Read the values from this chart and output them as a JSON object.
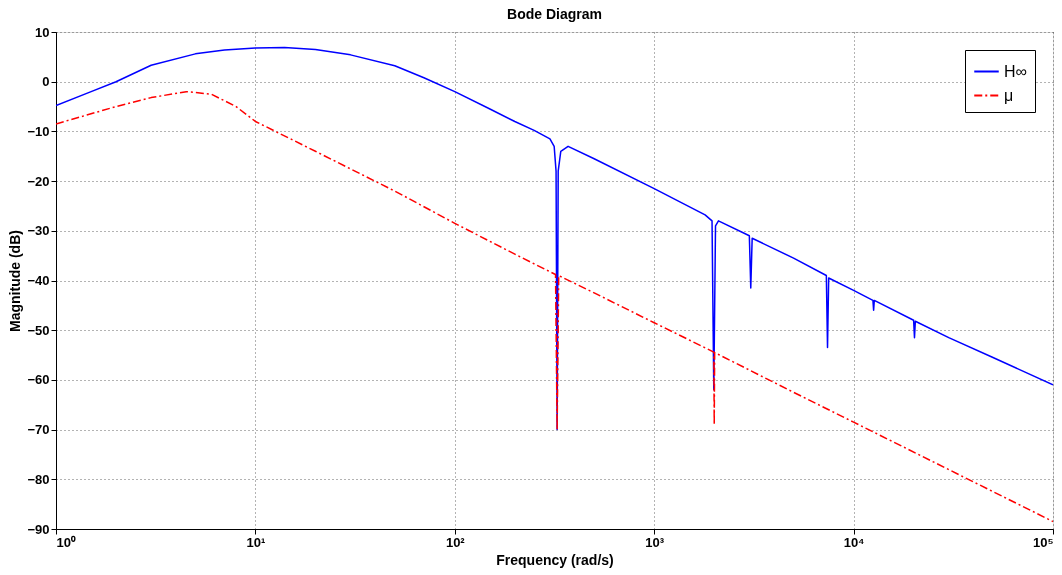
{
  "chart_data": {
    "type": "line",
    "title": "Bode Diagram",
    "xlabel": "Frequency  (rad/s)",
    "ylabel": "Magnitude (dB)",
    "log": "x",
    "grid": true,
    "legend": "top right",
    "xlim": [
      1,
      100000
    ],
    "xticks": [
      {
        "value": 1,
        "label": "10⁰"
      },
      {
        "value": 10,
        "label": "10¹"
      },
      {
        "value": 100,
        "label": "10²"
      },
      {
        "value": 1000,
        "label": "10³"
      },
      {
        "value": 10000,
        "label": "10⁴"
      },
      {
        "value": 100000,
        "label": "10⁵"
      }
    ],
    "ylim": [
      -90,
      10
    ],
    "yticks": [
      -90,
      -80,
      -70,
      -60,
      -50,
      -40,
      -30,
      -20,
      -10,
      0,
      10
    ],
    "series": [
      {
        "name": "H∞",
        "color": "#0000ff",
        "line_style": "solid",
        "x": [
          1,
          1.5,
          2,
          3,
          5,
          7,
          10,
          14,
          20,
          30,
          50,
          70,
          100,
          150,
          200,
          250,
          300,
          315,
          322,
          326,
          330,
          340,
          370,
          500,
          1000,
          1800,
          1950,
          1990,
          2030,
          2100,
          3000,
          3050,
          3100,
          5000,
          7300,
          7400,
          7500,
          10000,
          12500,
          12600,
          12700,
          20000,
          20200,
          20400,
          30000,
          50000,
          100000
        ],
        "values": [
          -4.8,
          -2,
          0,
          3.3,
          5.6,
          6.4,
          6.8,
          6.9,
          6.5,
          5.4,
          3.2,
          0.8,
          -2,
          -5.5,
          -8,
          -9.8,
          -11.5,
          -13,
          -18,
          -70,
          -18,
          -14,
          -13,
          -15.5,
          -21.5,
          -26.8,
          -28,
          -62,
          -29,
          -28,
          -31,
          -41.5,
          -31.5,
          -35.5,
          -39,
          -53.5,
          -39.5,
          -42,
          -44,
          -46,
          -44,
          -48,
          -51.5,
          -48.2,
          -51.5,
          -55.5,
          -61
        ]
      },
      {
        "name": "μ",
        "color": "#ff0000",
        "line_style": "dashdot",
        "x": [
          1,
          2,
          3,
          4.5,
          6,
          8,
          10,
          15,
          20,
          50,
          100,
          200,
          320,
          326,
          332,
          500,
          1000,
          1990,
          2000,
          2010,
          5000,
          10000,
          100000
        ],
        "values": [
          -8.5,
          -5,
          -3.2,
          -2,
          -2.5,
          -5,
          -8,
          -11.5,
          -14,
          -22,
          -28.5,
          -34.7,
          -38.8,
          -70,
          -39,
          -42.5,
          -48.5,
          -54.4,
          -69,
          -54.5,
          -62.5,
          -68.5,
          -88.5
        ]
      }
    ]
  }
}
